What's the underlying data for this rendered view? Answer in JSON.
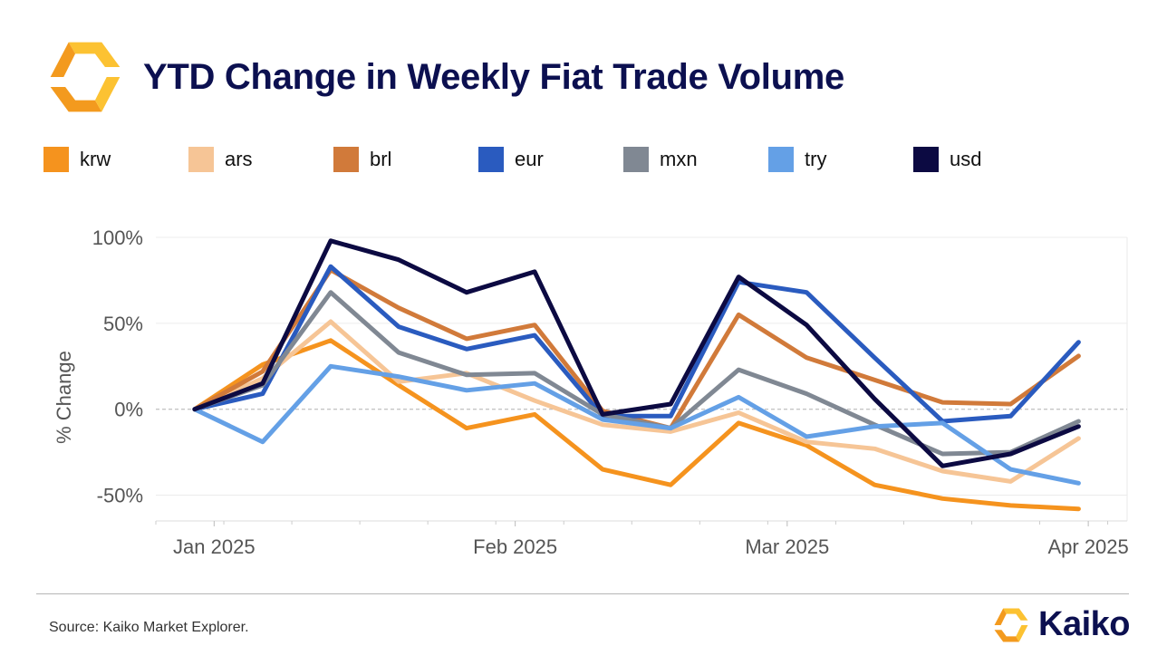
{
  "header": {
    "title": "YTD Change in Weekly Fiat Trade Volume"
  },
  "footer": {
    "source": "Source: Kaiko Market Explorer.",
    "brand": "Kaiko"
  },
  "colors": {
    "title": "#0c1050",
    "logo_orange": "#f39a1e",
    "logo_light": "#fcc232"
  },
  "chart_data": {
    "type": "line",
    "ylabel": "% Change",
    "ylim": [
      -0.65,
      1.0
    ],
    "yticks": [
      -0.5,
      0,
      0.5,
      1.0
    ],
    "ytick_labels": [
      "-50%",
      "0%",
      "50%",
      "100%"
    ],
    "xlim": [
      "2024-12-26",
      "2025-04-05"
    ],
    "xticks": [
      "2025-01-01",
      "2025-02-01",
      "2025-03-01",
      "2025-04-01"
    ],
    "xtick_labels": [
      "Jan 2025",
      "Feb 2025",
      "Mar 2025",
      "Apr 2025"
    ],
    "grid": true,
    "zero_line": "dashed",
    "legend_position": "top",
    "x": [
      "2024-12-30",
      "2025-01-06",
      "2025-01-13",
      "2025-01-20",
      "2025-01-27",
      "2025-02-03",
      "2025-02-10",
      "2025-02-17",
      "2025-02-24",
      "2025-03-03",
      "2025-03-10",
      "2025-03-17",
      "2025-03-24",
      "2025-03-31"
    ],
    "series": [
      {
        "name": "krw",
        "color": "#f5931e",
        "values": [
          0,
          0.26,
          0.4,
          0.14,
          -0.11,
          -0.03,
          -0.35,
          -0.44,
          -0.08,
          -0.21,
          -0.44,
          -0.52,
          -0.56,
          -0.58
        ]
      },
      {
        "name": "ars",
        "color": "#f6c596",
        "values": [
          0,
          0.18,
          0.51,
          0.16,
          0.21,
          0.05,
          -0.09,
          -0.13,
          -0.02,
          -0.19,
          -0.23,
          -0.36,
          -0.42,
          -0.17
        ]
      },
      {
        "name": "brl",
        "color": "#d17a3a",
        "values": [
          0,
          0.22,
          0.81,
          0.59,
          0.41,
          0.49,
          -0.01,
          -0.11,
          0.55,
          0.3,
          0.17,
          0.04,
          0.03,
          0.31
        ]
      },
      {
        "name": "eur",
        "color": "#2a5bbf",
        "values": [
          0,
          0.09,
          0.83,
          0.48,
          0.35,
          0.43,
          -0.04,
          -0.04,
          0.74,
          0.68,
          0.3,
          -0.07,
          -0.04,
          0.39
        ]
      },
      {
        "name": "mxn",
        "color": "#808893",
        "values": [
          0,
          0.14,
          0.68,
          0.33,
          0.2,
          0.21,
          -0.03,
          -0.11,
          0.23,
          0.09,
          -0.09,
          -0.26,
          -0.25,
          -0.07
        ]
      },
      {
        "name": "try",
        "color": "#64a0e6",
        "values": [
          0,
          -0.19,
          0.25,
          0.19,
          0.11,
          0.15,
          -0.06,
          -0.11,
          0.07,
          -0.16,
          -0.1,
          -0.08,
          -0.35,
          -0.43
        ]
      },
      {
        "name": "usd",
        "color": "#0c0a42",
        "values": [
          0,
          0.15,
          0.98,
          0.87,
          0.68,
          0.8,
          -0.03,
          0.03,
          0.77,
          0.49,
          0.06,
          -0.33,
          -0.26,
          -0.1
        ]
      }
    ]
  }
}
